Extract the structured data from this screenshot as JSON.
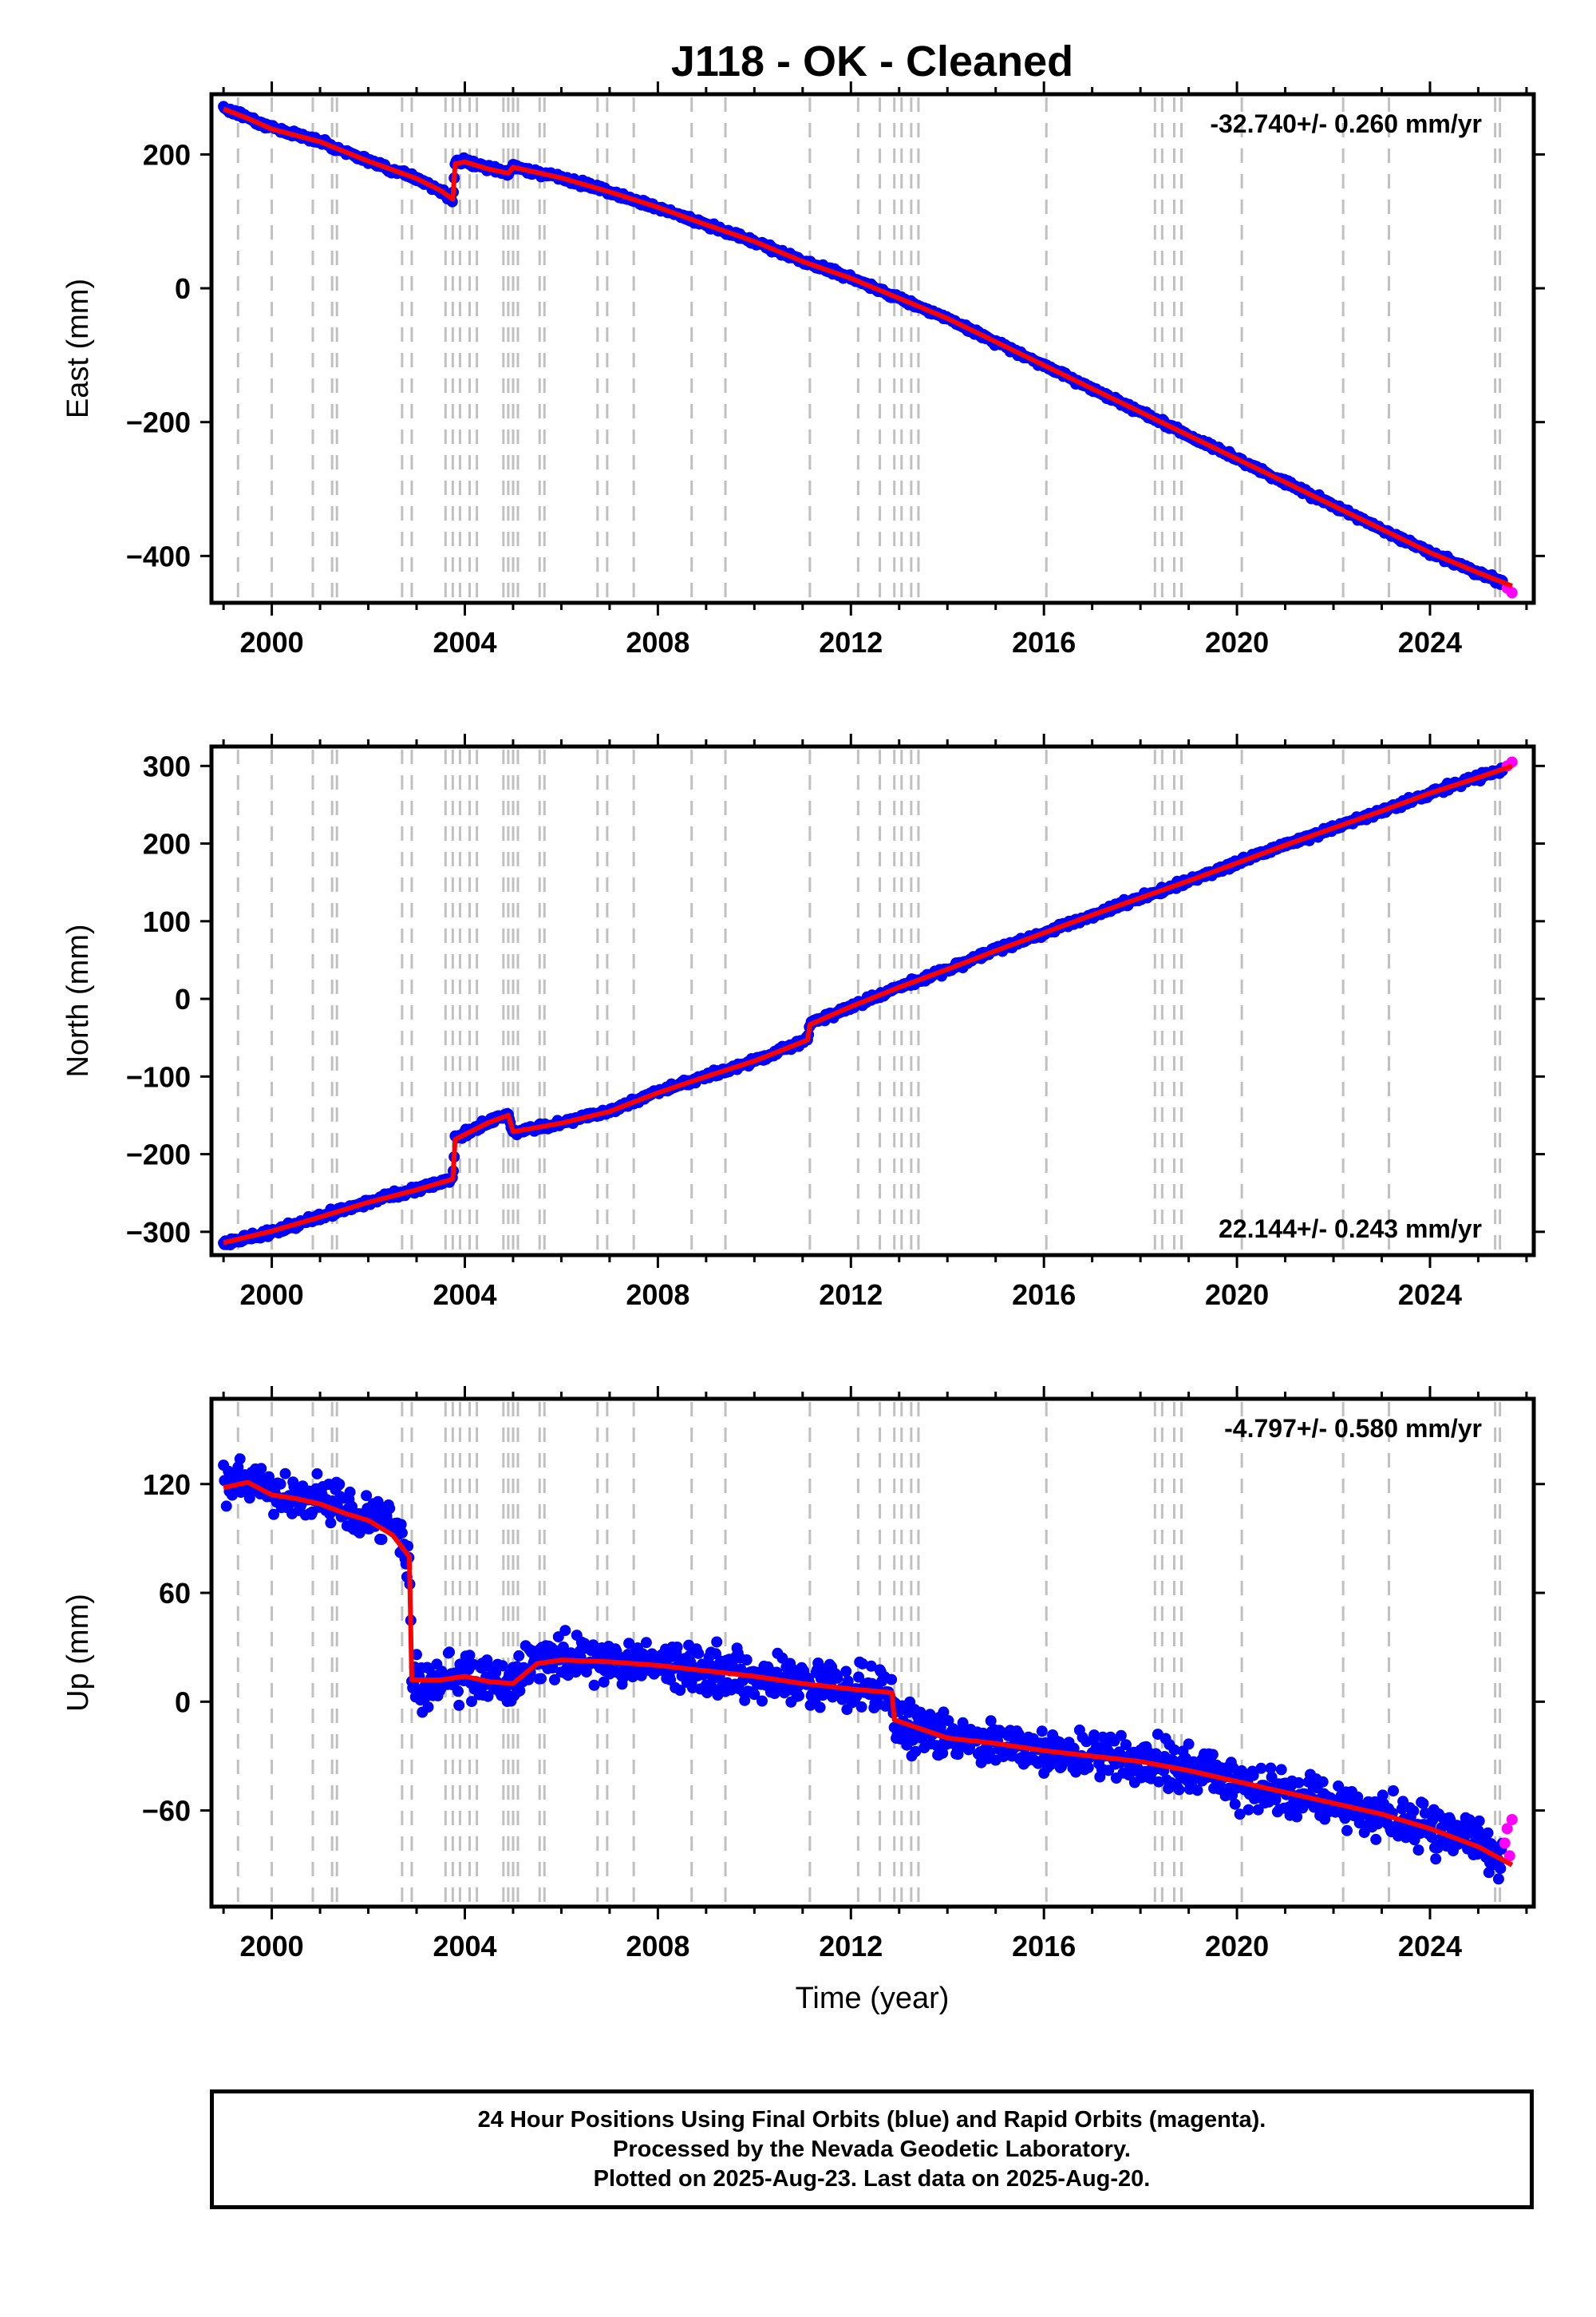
{
  "title": "J118  - OK - Cleaned",
  "xlabel": "Time (year)",
  "x_tick_labels": [
    "2000",
    "2004",
    "2008",
    "2012",
    "2016",
    "2020",
    "2024"
  ],
  "colors": {
    "final_orbits": "#0000ff",
    "rapid_orbits": "#ff00ff",
    "model_fit": "#ff0000",
    "steps": "#c0c0c0",
    "frame": "#000000"
  },
  "footer": {
    "line1": "24 Hour Positions Using Final Orbits (blue) and Rapid Orbits (magenta).",
    "line2": "Processed by the Nevada Geodetic Laboratory.",
    "line3": "Plotted on 2025-Aug-23. Last data on 2025-Aug-20."
  },
  "chart_data": [
    {
      "type": "scatter",
      "component": "east",
      "ylabel": "East (mm)",
      "rate_label": "-32.740+/- 0.260 mm/yr",
      "rate_label_position": "top-right",
      "xlim": [
        1998.75,
        2026.15
      ],
      "ylim": [
        -470,
        290
      ],
      "yticks": [
        -400,
        -200,
        0,
        200
      ],
      "grid": false,
      "series": [
        {
          "name": "Final Orbits",
          "color": "#0000ff",
          "x": [
            1999.0,
            1999.5,
            2000.0,
            2001.0,
            2002.0,
            2003.0,
            2003.5,
            2003.75,
            2003.8,
            2004.0,
            2004.5,
            2004.9,
            2005.0,
            2006.0,
            2007.0,
            2008.0,
            2009.0,
            2010.0,
            2011.0,
            2012.0,
            2013.0,
            2014.0,
            2015.0,
            2016.0,
            2017.0,
            2018.0,
            2019.0,
            2020.0,
            2021.0,
            2022.0,
            2023.0,
            2024.0,
            2025.0,
            2025.5
          ],
          "y": [
            270,
            255,
            240,
            220,
            190,
            165,
            145,
            132,
            188,
            190,
            178,
            172,
            182,
            165,
            145,
            120,
            95,
            70,
            40,
            15,
            -15,
            -45,
            -80,
            -115,
            -150,
            -185,
            -220,
            -255,
            -290,
            -325,
            -360,
            -395,
            -425,
            -440
          ]
        },
        {
          "name": "Rapid Orbits",
          "color": "#ff00ff",
          "x": [
            2025.6,
            2025.7
          ],
          "y": [
            -448,
            -455
          ]
        },
        {
          "name": "Model",
          "color": "#ff0000",
          "x": [
            1999.0,
            1999.5,
            2000.0,
            2001.0,
            2002.0,
            2003.0,
            2003.5,
            2003.75,
            2003.8,
            2004.0,
            2004.5,
            2004.9,
            2005.0,
            2006.0,
            2007.0,
            2008.0,
            2009.0,
            2010.0,
            2011.0,
            2012.0,
            2013.0,
            2014.0,
            2015.0,
            2016.0,
            2017.0,
            2018.0,
            2019.0,
            2020.0,
            2021.0,
            2022.0,
            2023.0,
            2024.0,
            2025.0,
            2025.7
          ],
          "y": [
            268,
            254,
            238,
            219,
            190,
            164,
            146,
            133,
            186,
            189,
            178,
            172,
            181,
            165,
            144,
            121,
            95,
            70,
            40,
            15,
            -15,
            -45,
            -80,
            -115,
            -150,
            -185,
            -220,
            -255,
            -290,
            -325,
            -360,
            -395,
            -425,
            -445
          ]
        }
      ]
    },
    {
      "type": "scatter",
      "component": "north",
      "ylabel": "North (mm)",
      "rate_label": "22.144+/- 0.243 mm/yr",
      "rate_label_position": "bottom-right",
      "xlim": [
        1998.75,
        2026.15
      ],
      "ylim": [
        -330,
        325
      ],
      "yticks": [
        -300,
        -200,
        -100,
        0,
        100,
        200,
        300
      ],
      "grid": false,
      "series": [
        {
          "name": "Final Orbits",
          "color": "#0000ff",
          "x": [
            1999.0,
            2000.0,
            2001.0,
            2002.0,
            2003.0,
            2003.75,
            2003.8,
            2004.5,
            2004.9,
            2005.0,
            2006.0,
            2007.0,
            2008.0,
            2009.0,
            2010.0,
            2011.1,
            2011.15,
            2012.0,
            2013.0,
            2014.0,
            2015.0,
            2016.0,
            2017.0,
            2018.0,
            2019.0,
            2020.0,
            2021.0,
            2022.0,
            2023.0,
            2024.0,
            2025.0,
            2025.5
          ],
          "y": [
            -315,
            -300,
            -280,
            -262,
            -245,
            -232,
            -180,
            -158,
            -148,
            -172,
            -160,
            -145,
            -120,
            -100,
            -80,
            -52,
            -32,
            -10,
            15,
            38,
            62,
            85,
            108,
            130,
            152,
            175,
            198,
            220,
            242,
            265,
            285,
            295
          ]
        },
        {
          "name": "Rapid Orbits",
          "color": "#ff00ff",
          "x": [
            2025.6,
            2025.7
          ],
          "y": [
            300,
            305
          ]
        },
        {
          "name": "Model",
          "color": "#ff0000",
          "x": [
            1999.0,
            2000.0,
            2001.0,
            2002.0,
            2003.0,
            2003.75,
            2003.8,
            2004.5,
            2004.9,
            2005.0,
            2006.0,
            2007.0,
            2008.0,
            2009.0,
            2010.0,
            2011.1,
            2011.15,
            2012.0,
            2013.0,
            2014.0,
            2015.0,
            2016.0,
            2017.0,
            2018.0,
            2019.0,
            2020.0,
            2021.0,
            2022.0,
            2023.0,
            2024.0,
            2025.0,
            2025.7
          ],
          "y": [
            -314,
            -299,
            -281,
            -262,
            -246,
            -232,
            -181,
            -159,
            -150,
            -171,
            -160,
            -145,
            -121,
            -100,
            -80,
            -53,
            -33,
            -10,
            15,
            38,
            62,
            85,
            108,
            130,
            152,
            175,
            198,
            220,
            242,
            265,
            285,
            300
          ]
        }
      ]
    },
    {
      "type": "scatter",
      "component": "up",
      "ylabel": "Up (mm)",
      "rate_label": "-4.797+/- 0.580 mm/yr",
      "rate_label_position": "top-right",
      "xlim": [
        1998.75,
        2026.15
      ],
      "ylim": [
        -113,
        167
      ],
      "yticks": [
        -60,
        0,
        60,
        120
      ],
      "grid": false,
      "series": [
        {
          "name": "Final Orbits",
          "color": "#0000ff",
          "x": [
            1999.0,
            1999.5,
            2000.0,
            2000.5,
            2001.0,
            2001.5,
            2002.0,
            2002.5,
            2002.85,
            2002.9,
            2003.5,
            2004.0,
            2004.5,
            2005.0,
            2005.5,
            2006.0,
            2007.0,
            2008.0,
            2009.0,
            2010.0,
            2011.0,
            2012.0,
            2012.85,
            2012.9,
            2014.0,
            2015.0,
            2016.0,
            2017.0,
            2018.0,
            2019.0,
            2020.0,
            2021.0,
            2022.0,
            2023.0,
            2024.0,
            2025.0,
            2025.5
          ],
          "y": [
            118,
            122,
            115,
            110,
            112,
            105,
            102,
            95,
            80,
            10,
            12,
            15,
            12,
            10,
            22,
            24,
            23,
            21,
            18,
            14,
            10,
            8,
            5,
            -12,
            -20,
            -24,
            -28,
            -30,
            -33,
            -38,
            -45,
            -50,
            -56,
            -62,
            -70,
            -78,
            -88
          ]
        },
        {
          "name": "Rapid Orbits",
          "color": "#ff00ff",
          "x": [
            2025.55,
            2025.6,
            2025.65,
            2025.7
          ],
          "y": [
            -78,
            -70,
            -85,
            -65
          ]
        },
        {
          "name": "Model",
          "color": "#ff0000",
          "x": [
            1999.0,
            1999.5,
            2000.0,
            2000.5,
            2001.0,
            2001.5,
            2002.0,
            2002.5,
            2002.85,
            2002.9,
            2003.5,
            2004.0,
            2004.5,
            2005.0,
            2005.5,
            2006.0,
            2007.0,
            2008.0,
            2009.0,
            2010.0,
            2011.0,
            2012.0,
            2012.85,
            2012.9,
            2014.0,
            2015.0,
            2016.0,
            2017.0,
            2018.0,
            2019.0,
            2020.0,
            2021.0,
            2022.0,
            2023.0,
            2024.0,
            2025.0,
            2025.7
          ],
          "y": [
            118,
            121,
            114,
            112,
            109,
            104,
            100,
            92,
            80,
            12,
            12,
            14,
            11,
            10,
            21,
            23,
            22,
            20,
            17,
            14,
            10,
            7,
            5,
            -10,
            -20,
            -23,
            -27,
            -30,
            -33,
            -38,
            -44,
            -50,
            -56,
            -62,
            -70,
            -80,
            -90
          ]
        }
      ]
    }
  ],
  "step_epochs": [
    1999.3,
    2000.0,
    2000.85,
    2001.25,
    2001.35,
    2002.7,
    2002.9,
    2003.6,
    2003.75,
    2003.9,
    2004.1,
    2004.25,
    2004.8,
    2004.9,
    2005.0,
    2005.1,
    2005.55,
    2005.65,
    2006.75,
    2006.95,
    2007.5,
    2008.7,
    2009.4,
    2011.15,
    2012.15,
    2012.6,
    2012.9,
    2013.05,
    2013.25,
    2013.4,
    2016.05,
    2018.3,
    2018.45,
    2018.7,
    2018.85,
    2020.1,
    2022.2,
    2023.15,
    2025.35,
    2025.45
  ]
}
